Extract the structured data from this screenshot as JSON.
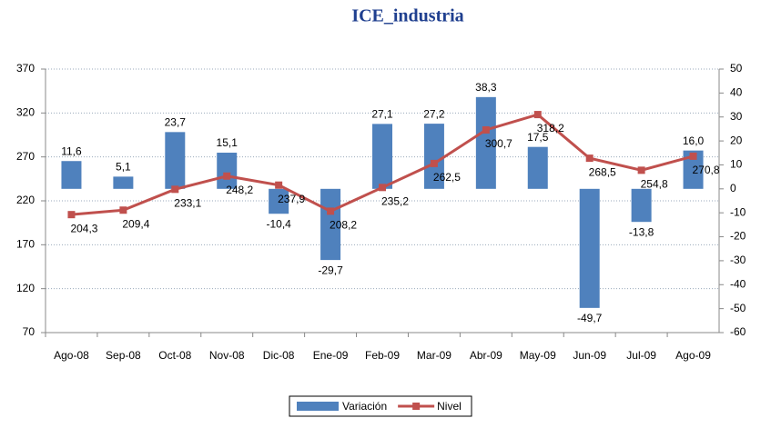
{
  "chart_data": {
    "type": "bar-line",
    "title": "ICE_industria",
    "categories": [
      "Ago-08",
      "Sep-08",
      "Oct-08",
      "Nov-08",
      "Dic-08",
      "Ene-09",
      "Feb-09",
      "Mar-09",
      "Abr-09",
      "May-09",
      "Jun-09",
      "Jul-09",
      "Ago-09"
    ],
    "series": [
      {
        "name": "Variación",
        "type": "bar",
        "axis": "y2",
        "color": "#4f81bd",
        "values": [
          11.6,
          5.1,
          23.7,
          15.1,
          -10.4,
          -29.7,
          27.1,
          27.2,
          38.3,
          17.5,
          -49.7,
          -13.8,
          16.0
        ],
        "value_labels": [
          "11,6",
          "5,1",
          "23,7",
          "15,1",
          "-10,4",
          "-29,7",
          "27,1",
          "27,2",
          "38,3",
          "17,5",
          "-49,7",
          "-13,8",
          "16,0"
        ]
      },
      {
        "name": "Nivel",
        "type": "line",
        "axis": "y",
        "color": "#c0504d",
        "values": [
          204.3,
          209.4,
          233.1,
          248.2,
          237.9,
          208.2,
          235.2,
          262.5,
          300.7,
          318.2,
          268.5,
          254.8,
          270.8
        ],
        "value_labels": [
          "204,3",
          "209,4",
          "233,1",
          "248,2",
          "237,9",
          "208,2",
          "235,2",
          "262,5",
          "300,7",
          "318,2",
          "268,5",
          "254,8",
          "270,8"
        ]
      }
    ],
    "ylim": [
      70,
      370
    ],
    "yticks": [
      70,
      120,
      170,
      220,
      270,
      320,
      370
    ],
    "y2lim": [
      -60,
      50
    ],
    "y2ticks": [
      -60,
      -50,
      -40,
      -30,
      -20,
      -10,
      0,
      10,
      20,
      30,
      40,
      50
    ],
    "grid": true,
    "legend": "bottom"
  }
}
